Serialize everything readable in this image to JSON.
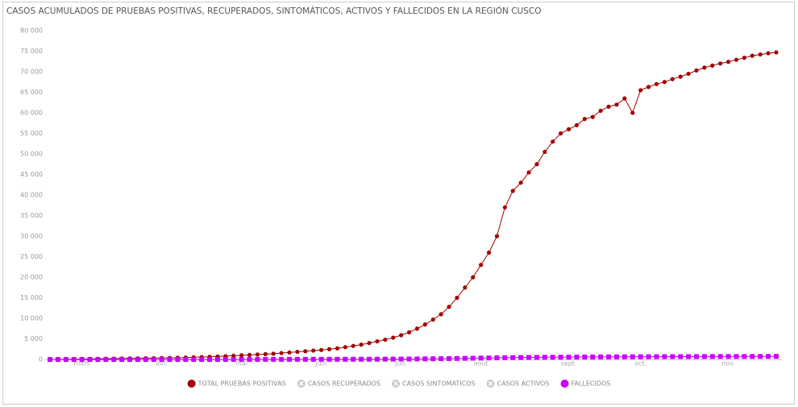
{
  "chart_data": {
    "type": "line",
    "title": "CASOS ACUMULADOS DE PRUEBAS POSITIVAS, RECUPERADOS, SINTOMÁTICOS, ACTIVOS Y FALLECIDOS EN LA REGIÓN CUSCO",
    "categories": [
      null,
      null,
      null,
      null,
      "mars",
      null,
      null,
      null,
      null,
      null,
      null,
      null,
      null,
      null,
      "avr.",
      null,
      null,
      null,
      null,
      null,
      null,
      null,
      null,
      null,
      "mai",
      null,
      null,
      null,
      null,
      null,
      null,
      null,
      null,
      null,
      "juin",
      null,
      null,
      null,
      null,
      null,
      null,
      null,
      null,
      null,
      "juil.",
      null,
      null,
      null,
      null,
      null,
      null,
      null,
      null,
      null,
      "aout",
      null,
      null,
      null,
      null,
      null,
      null,
      null,
      null,
      null,
      null,
      "sept.",
      null,
      null,
      null,
      null,
      null,
      null,
      null,
      null,
      "oct.",
      null,
      null,
      null,
      null,
      null,
      null,
      null,
      null,
      null,
      null,
      "nov.",
      null,
      null,
      null,
      null,
      null,
      null
    ],
    "series": [
      {
        "name": "TOTAL PRUEBAS POSITIVAS",
        "color": "#a50000",
        "marker": "circle",
        "visible": true,
        "values": [
          0,
          20,
          50,
          80,
          100,
          120,
          150,
          170,
          200,
          230,
          250,
          270,
          290,
          310,
          340,
          380,
          420,
          460,
          520,
          580,
          650,
          720,
          800,
          900,
          1000,
          1100,
          1200,
          1300,
          1400,
          1550,
          1700,
          1850,
          2000,
          2150,
          2300,
          2500,
          2700,
          3000,
          3300,
          3600,
          4000,
          4400,
          4800,
          5300,
          5900,
          6600,
          7500,
          8500,
          9700,
          11000,
          12800,
          15000,
          17500,
          20000,
          23000,
          26000,
          30000,
          37000,
          41000,
          43000,
          45500,
          47500,
          50500,
          53000,
          55000,
          56000,
          57000,
          58500,
          59000,
          60500,
          61500,
          62000,
          63500,
          60000,
          65500,
          66300,
          67000,
          67500,
          68200,
          68800,
          69500,
          70300,
          71000,
          71500,
          72000,
          72400,
          72900,
          73400,
          73900,
          74200,
          74500,
          74700
        ]
      },
      {
        "name": "CASOS RECUPERADOS",
        "visible": false
      },
      {
        "name": "CASOS SINTOMATICOS",
        "visible": false
      },
      {
        "name": "CASOS ACTIVOS",
        "visible": false
      },
      {
        "name": "FALLECIDOS",
        "color": "#cc00ff",
        "marker": "square",
        "visible": true,
        "values": [
          0,
          0,
          0,
          0,
          0,
          0,
          0,
          0,
          0,
          0,
          0,
          0,
          0,
          0,
          0,
          0,
          0,
          0,
          0,
          0,
          2,
          3,
          4,
          5,
          6,
          8,
          10,
          12,
          14,
          16,
          18,
          20,
          22,
          25,
          28,
          32,
          36,
          40,
          45,
          50,
          56,
          62,
          70,
          80,
          92,
          105,
          120,
          140,
          160,
          185,
          210,
          240,
          270,
          300,
          330,
          360,
          390,
          420,
          445,
          470,
          490,
          510,
          525,
          540,
          555,
          570,
          580,
          590,
          600,
          610,
          620,
          630,
          640,
          648,
          655,
          662,
          668,
          674,
          680,
          686,
          692,
          698,
          703,
          708,
          713,
          718,
          722,
          726,
          730,
          734,
          738,
          742
        ]
      }
    ],
    "ylim": [
      0,
      80000
    ],
    "yticks": [
      0,
      {
        "value": 5000,
        "label": "5 000"
      },
      {
        "value": 10000,
        "label": "10 000"
      },
      {
        "value": 15000,
        "label": "15 000"
      },
      {
        "value": 20000,
        "label": "20 000"
      },
      {
        "value": 25000,
        "label": "25 000"
      },
      {
        "value": 30000,
        "label": "30 000"
      },
      {
        "value": 35000,
        "label": "35 000"
      },
      {
        "value": 40000,
        "label": "40 000"
      },
      {
        "value": 45000,
        "label": "45 000"
      },
      {
        "value": 50000,
        "label": "50 000"
      },
      {
        "value": 55000,
        "label": "55 000"
      },
      {
        "value": 60000,
        "label": "60 000"
      },
      {
        "value": 65000,
        "label": "65 000"
      },
      {
        "value": 70000,
        "label": "70 000"
      },
      {
        "value": 75000,
        "label": "75 000"
      },
      {
        "value": 80000,
        "label": "80 000"
      }
    ],
    "grid": false
  }
}
